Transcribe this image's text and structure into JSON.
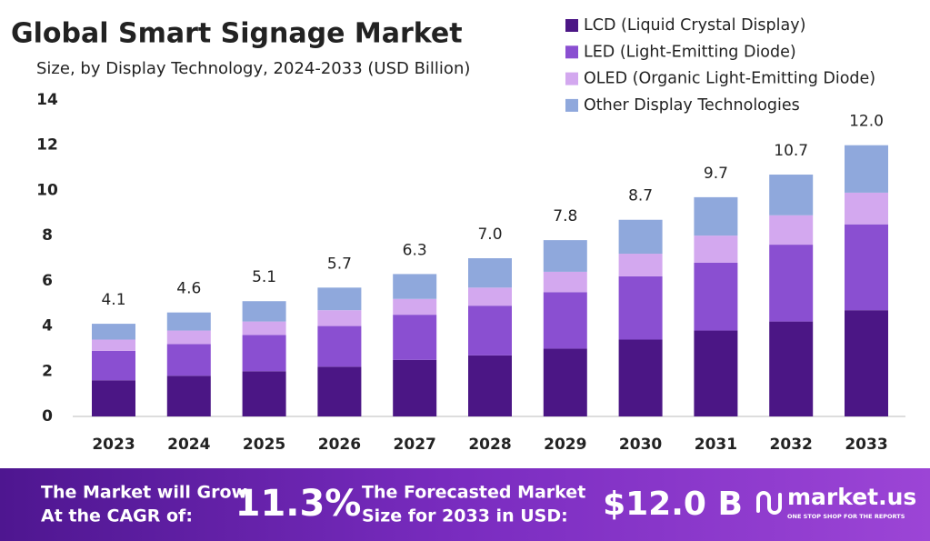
{
  "chart_data": {
    "type": "stacked_bar",
    "title": "Global Smart Signage Market",
    "subtitle": "Size, by Display Technology, 2024-2033 (USD Billion)",
    "categories": [
      "2023",
      "2024",
      "2025",
      "2026",
      "2027",
      "2028",
      "2029",
      "2030",
      "2031",
      "2032",
      "2033"
    ],
    "series": [
      {
        "name": "LCD (Liquid Crystal Display)",
        "color": "#4b1685",
        "values": [
          1.6,
          1.8,
          2.0,
          2.2,
          2.5,
          2.7,
          3.0,
          3.4,
          3.8,
          4.2,
          4.7
        ]
      },
      {
        "name": "LED (Light-Emitting Diode)",
        "color": "#8a4fd1",
        "values": [
          1.3,
          1.4,
          1.6,
          1.8,
          2.0,
          2.2,
          2.5,
          2.8,
          3.0,
          3.4,
          3.8
        ]
      },
      {
        "name": "OLED (Organic Light-Emitting Diode)",
        "color": "#d3a8ef",
        "values": [
          0.5,
          0.6,
          0.6,
          0.7,
          0.7,
          0.8,
          0.9,
          1.0,
          1.2,
          1.3,
          1.4
        ]
      },
      {
        "name": "Other Display Technologies",
        "color": "#8fa8dc",
        "values": [
          0.7,
          0.8,
          0.9,
          1.0,
          1.1,
          1.3,
          1.4,
          1.5,
          1.7,
          1.8,
          2.1
        ]
      }
    ],
    "totals": [
      4.1,
      4.6,
      5.1,
      5.7,
      6.3,
      7.0,
      7.8,
      8.7,
      9.7,
      10.7,
      12.0
    ],
    "total_labels": [
      "4.1",
      "4.6",
      "5.1",
      "5.7",
      "6.3",
      "7.0",
      "7.8",
      "8.7",
      "9.7",
      "10.7",
      "12.0"
    ],
    "ylim": [
      0,
      14
    ],
    "yticks": [
      0,
      2,
      4,
      6,
      8,
      10,
      12,
      14
    ],
    "grid": false
  },
  "footer": {
    "cagr_text": [
      "The Market will Grow",
      "At the CAGR of:"
    ],
    "cagr_value": "11.3%",
    "forecast_text": [
      "The Forecasted Market",
      "Size for 2033 in USD:"
    ],
    "forecast_value": "$12.0 B",
    "brand": "market.us",
    "tagline": "ONE STOP SHOP FOR THE REPORTS"
  }
}
